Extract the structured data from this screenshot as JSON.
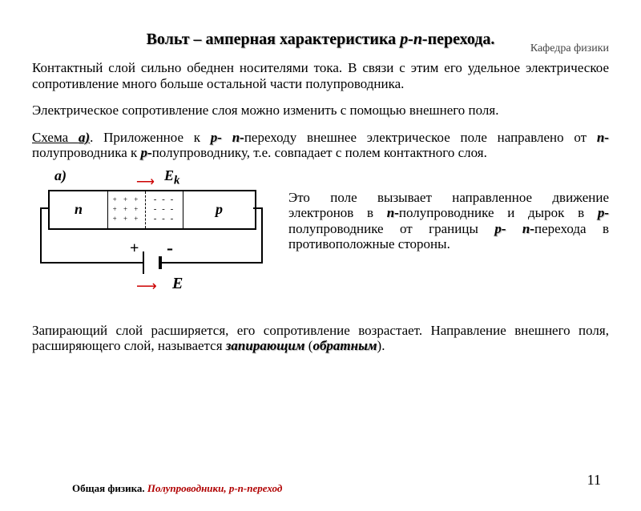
{
  "header": {
    "dept": "Кафедра физики"
  },
  "title": {
    "pre": "Вольт – амперная характеристика ",
    "ital": "p-n-",
    "post": "перехода"
  },
  "para1": "Контактный слой сильно обеднен носителями тока. В связи с этим его удельное электрическое сопротивление  много больше остальной части полупроводника.",
  "para2": "Электрическое сопротивление слоя можно изменить с помощью внешнего поля.",
  "para3": {
    "scheme": "Схема ",
    "a": "а)",
    "t1": ". Приложенное к ",
    "pn": "p- n-",
    "t2": "переходу внешнее электрическое поле направлено от ",
    "n": "n-",
    "t3": "полупроводника к ",
    "p": "p-",
    "t4": "полупроводнику, т.е. совпадает с полем контактного слоя."
  },
  "diagram": {
    "label_a": "а)",
    "ek": "E",
    "ek_sub": "k",
    "n": "n",
    "p": "p",
    "plus_row": "+ + +",
    "minus_row": "- - -",
    "bat_plus": "+",
    "bat_minus": "-",
    "e": "E",
    "arrow": "⟶"
  },
  "sidetext": {
    "t1": "Это поле вызывает направленное движение электронов в ",
    "n": "n-",
    "t2": "полупроводнике и дырок в ",
    "p": "p-",
    "t3": "полупроводнике от границы ",
    "pn": "p- n-",
    "t4": "перехода в противоположные стороны."
  },
  "para4": {
    "t1": "Запирающий  слой расширяется, его сопротивление возрастает. Направление внешнего поля, расширяющего слой, называется ",
    "lock": "запирающим",
    "open": " (",
    "rev": "обратным",
    "close": ")."
  },
  "footer": {
    "pre": "Общая физика. ",
    "red": "Полупроводники,  р-n-переход"
  },
  "page": "11",
  "colors": {
    "accent_red": "#cc0000",
    "text": "#000000",
    "bg": "#ffffff"
  }
}
